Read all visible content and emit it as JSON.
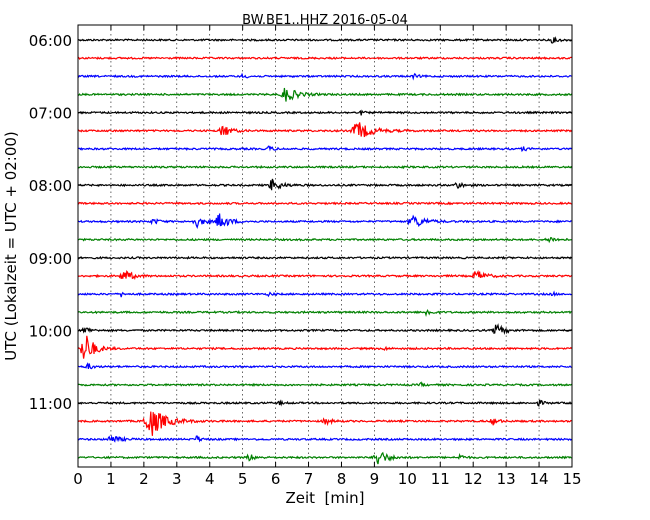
{
  "chart_data": {
    "type": "line",
    "title": "BW.BE1..HHZ 2016-05-04",
    "xlabel": "Zeit  [min]",
    "ylabel": "UTC (Lokalzeit = UTC + 02:00)",
    "xlim": [
      0,
      15
    ],
    "x_ticks": [
      "0",
      "1",
      "2",
      "3",
      "4",
      "5",
      "6",
      "7",
      "8",
      "9",
      "10",
      "11",
      "12",
      "13",
      "14",
      "15"
    ],
    "y_tick_labels": [
      "06:00",
      "07:00",
      "08:00",
      "09:00",
      "10:00",
      "11:00"
    ],
    "grid": "vertical dotted at every minute",
    "trace_colors": [
      "#000000",
      "#ff0000",
      "#0000ff",
      "#008000"
    ],
    "trace_start_times": [
      "06:00",
      "06:15",
      "06:30",
      "06:45",
      "07:00",
      "07:15",
      "07:30",
      "07:45",
      "08:00",
      "08:15",
      "08:30",
      "08:45",
      "09:00",
      "09:15",
      "09:30",
      "09:45",
      "10:00",
      "10:15",
      "10:30",
      "10:45",
      "11:00",
      "11:15",
      "11:30",
      "11:45"
    ],
    "events": [
      {
        "trace": 0,
        "t": 14.4,
        "amp": 0.35,
        "dur": 0.5
      },
      {
        "trace": 2,
        "t": 5.0,
        "amp": 0.3,
        "dur": 0.3
      },
      {
        "trace": 2,
        "t": 10.2,
        "amp": 0.3,
        "dur": 0.3
      },
      {
        "trace": 3,
        "t": 6.3,
        "amp": 1.1,
        "dur": 0.8
      },
      {
        "trace": 4,
        "t": 8.6,
        "amp": 0.3,
        "dur": 0.2
      },
      {
        "trace": 5,
        "t": 4.4,
        "amp": 1.0,
        "dur": 0.5
      },
      {
        "trace": 5,
        "t": 8.5,
        "amp": 1.3,
        "dur": 1.0
      },
      {
        "trace": 6,
        "t": 5.8,
        "amp": 0.4,
        "dur": 0.3
      },
      {
        "trace": 6,
        "t": 13.5,
        "amp": 0.3,
        "dur": 0.3
      },
      {
        "trace": 8,
        "t": 5.9,
        "amp": 0.9,
        "dur": 0.6
      },
      {
        "trace": 8,
        "t": 11.5,
        "amp": 0.5,
        "dur": 0.4
      },
      {
        "trace": 10,
        "t": 2.3,
        "amp": 0.4,
        "dur": 0.4
      },
      {
        "trace": 10,
        "t": 3.6,
        "amp": 0.8,
        "dur": 0.5
      },
      {
        "trace": 10,
        "t": 4.3,
        "amp": 1.2,
        "dur": 0.6
      },
      {
        "trace": 10,
        "t": 10.2,
        "amp": 0.9,
        "dur": 0.8
      },
      {
        "trace": 11,
        "t": 14.3,
        "amp": 0.4,
        "dur": 0.5
      },
      {
        "trace": 13,
        "t": 1.4,
        "amp": 0.9,
        "dur": 0.6
      },
      {
        "trace": 13,
        "t": 12.1,
        "amp": 0.8,
        "dur": 0.6
      },
      {
        "trace": 14,
        "t": 1.3,
        "amp": 0.4,
        "dur": 0.2
      },
      {
        "trace": 14,
        "t": 5.8,
        "amp": 0.3,
        "dur": 0.2
      },
      {
        "trace": 14,
        "t": 14.4,
        "amp": 0.3,
        "dur": 0.2
      },
      {
        "trace": 15,
        "t": 10.6,
        "amp": 0.6,
        "dur": 0.3
      },
      {
        "trace": 16,
        "t": 12.7,
        "amp": 0.9,
        "dur": 0.5
      },
      {
        "trace": 16,
        "t": 0.2,
        "amp": 0.7,
        "dur": 0.3
      },
      {
        "trace": 17,
        "t": 0.2,
        "amp": 2.6,
        "dur": 0.6
      },
      {
        "trace": 17,
        "t": 9.3,
        "amp": 0.3,
        "dur": 0.2
      },
      {
        "trace": 18,
        "t": 0.3,
        "amp": 0.5,
        "dur": 0.3
      },
      {
        "trace": 19,
        "t": 10.4,
        "amp": 0.3,
        "dur": 0.2
      },
      {
        "trace": 20,
        "t": 6.1,
        "amp": 0.3,
        "dur": 0.2
      },
      {
        "trace": 20,
        "t": 14.0,
        "amp": 0.4,
        "dur": 0.3
      },
      {
        "trace": 21,
        "t": 2.2,
        "amp": 2.3,
        "dur": 1.0
      },
      {
        "trace": 21,
        "t": 7.5,
        "amp": 0.5,
        "dur": 0.4
      },
      {
        "trace": 21,
        "t": 12.6,
        "amp": 0.5,
        "dur": 0.4
      },
      {
        "trace": 22,
        "t": 1.0,
        "amp": 0.6,
        "dur": 0.6
      },
      {
        "trace": 22,
        "t": 3.6,
        "amp": 0.5,
        "dur": 0.3
      },
      {
        "trace": 23,
        "t": 5.2,
        "amp": 0.5,
        "dur": 0.4
      },
      {
        "trace": 23,
        "t": 9.1,
        "amp": 1.3,
        "dur": 0.6
      },
      {
        "trace": 23,
        "t": 11.6,
        "amp": 0.4,
        "dur": 0.3
      }
    ]
  }
}
